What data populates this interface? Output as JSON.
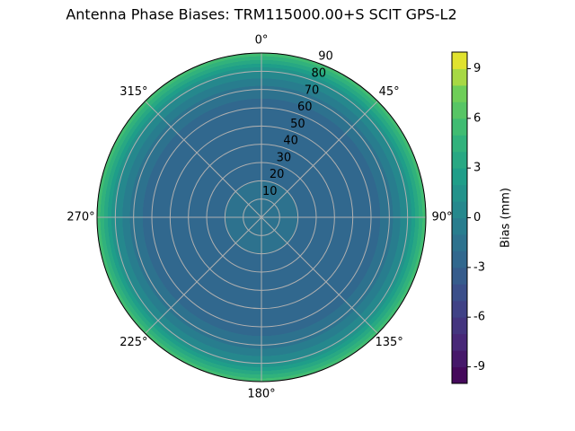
{
  "chart_data": {
    "type": "polar_contour",
    "title": "Antenna Phase Biases: TRM115000.00+S  SCIT GPS-L2",
    "r": [
      0,
      10,
      20,
      30,
      40,
      50,
      60,
      70,
      80,
      90
    ],
    "values": [
      -1.5,
      -1.5,
      -2,
      -2.5,
      -2.8,
      -2.8,
      -2.5,
      -1.5,
      1,
      6
    ],
    "rlim": [
      0,
      90
    ],
    "rticks": [
      10,
      20,
      30,
      40,
      50,
      60,
      70,
      80,
      90
    ],
    "thetaticks": [
      {
        "value": 0,
        "label": "0°"
      },
      {
        "value": 45,
        "label": "45°"
      },
      {
        "value": 90,
        "label": "90°"
      },
      {
        "value": 135,
        "label": "135°"
      },
      {
        "value": 180,
        "label": "180°"
      },
      {
        "value": 225,
        "label": "225°"
      },
      {
        "value": 270,
        "label": "270°"
      },
      {
        "value": 315,
        "label": "315°"
      }
    ],
    "theta_direction": "clockwise",
    "theta_zero": "north",
    "grid": true,
    "colormap": "viridis",
    "clim": [
      -10,
      10
    ],
    "level_step": 1,
    "colorbar_label": "Bias (mm)",
    "colorbar_ticks": [
      -9,
      -6,
      -3,
      0,
      3,
      6,
      9
    ]
  }
}
